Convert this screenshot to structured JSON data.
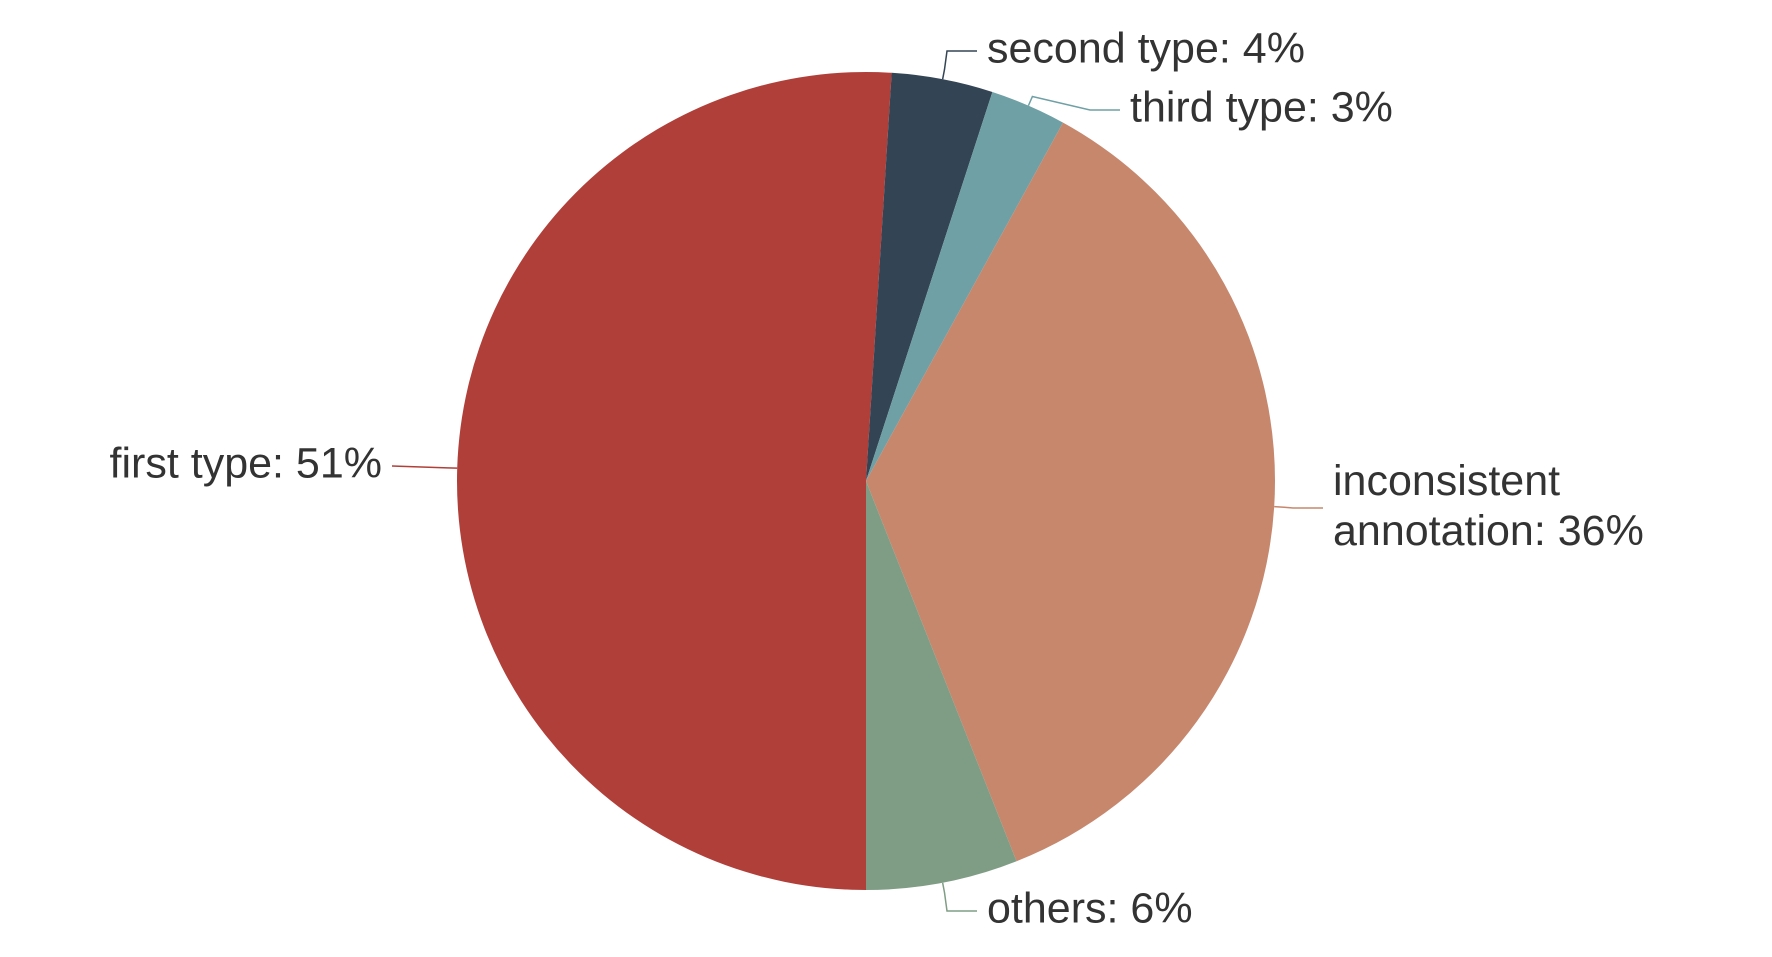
{
  "chart_data": {
    "type": "pie",
    "values": [
      51,
      4,
      3,
      36,
      6
    ],
    "value_labels": [
      "first type: 51%",
      "second type: 4%",
      "third type: 3%",
      "inconsistent annotation: 36%",
      "others: 6%"
    ],
    "colors": [
      "#b03f39",
      "#334454",
      "#6fa0a5",
      "#c6876d",
      "#7f9d85"
    ]
  }
}
